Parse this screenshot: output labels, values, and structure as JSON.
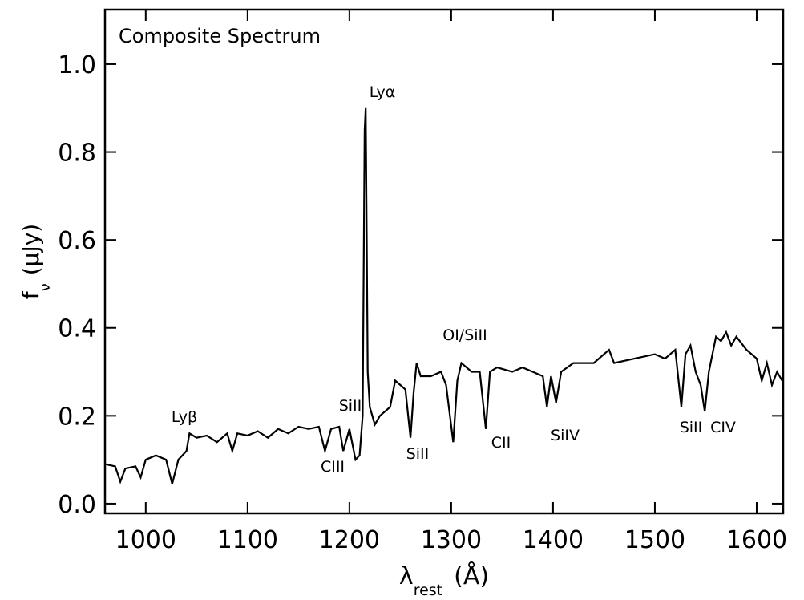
{
  "chart_data": {
    "type": "line",
    "title": "Composite Spectrum",
    "x_label": {
      "symbol": "λ",
      "subscript": "rest",
      "unit": "(Å)"
    },
    "y_label": {
      "symbol": "f",
      "subscript": "ν",
      "unit": "(μJy)"
    },
    "xlim": [
      960,
      1626
    ],
    "ylim": [
      -0.022,
      1.124
    ],
    "xticks": [
      1000,
      1100,
      1200,
      1300,
      1400,
      1500,
      1600
    ],
    "yticks": [
      {
        "value": 0,
        "label": "0.0"
      },
      0.2,
      0.4,
      0.6,
      0.8,
      {
        "value": 1,
        "label": "1.0"
      }
    ],
    "annotations": [
      "Lyα",
      "Lyβ",
      "SiII",
      "CIII",
      "SiII",
      "OI/SiII",
      "CII",
      "SiIV",
      "SiII",
      "CIV"
    ],
    "series": [
      {
        "color": "#000000",
        "x": [
          960,
          970,
          975,
          980,
          990,
          995,
          1000,
          1010,
          1020,
          1026,
          1032,
          1040,
          1043,
          1050,
          1060,
          1070,
          1080,
          1085,
          1090,
          1100,
          1110,
          1120,
          1130,
          1140,
          1150,
          1160,
          1170,
          1176,
          1182,
          1190,
          1194,
          1200,
          1206,
          1210,
          1213,
          1215,
          1216,
          1217,
          1218,
          1220,
          1225,
          1230,
          1240,
          1245,
          1250,
          1255,
          1260,
          1263,
          1266,
          1270,
          1280,
          1290,
          1295,
          1302,
          1306,
          1310,
          1320,
          1328,
          1334,
          1338,
          1345,
          1360,
          1370,
          1380,
          1390,
          1394,
          1398,
          1403,
          1408,
          1420,
          1440,
          1455,
          1460,
          1480,
          1500,
          1510,
          1520,
          1526,
          1530,
          1535,
          1540,
          1545,
          1549,
          1553,
          1560,
          1565,
          1570,
          1575,
          1580,
          1590,
          1600,
          1605,
          1610,
          1615,
          1620,
          1625
        ],
        "values": [
          0.09,
          0.085,
          0.05,
          0.08,
          0.085,
          0.06,
          0.1,
          0.11,
          0.1,
          0.045,
          0.1,
          0.12,
          0.16,
          0.15,
          0.155,
          0.14,
          0.16,
          0.12,
          0.16,
          0.155,
          0.165,
          0.15,
          0.17,
          0.16,
          0.175,
          0.17,
          0.175,
          0.12,
          0.17,
          0.175,
          0.12,
          0.17,
          0.1,
          0.11,
          0.2,
          0.85,
          0.9,
          0.6,
          0.3,
          0.22,
          0.18,
          0.2,
          0.22,
          0.28,
          0.27,
          0.26,
          0.15,
          0.25,
          0.32,
          0.29,
          0.29,
          0.3,
          0.27,
          0.14,
          0.28,
          0.32,
          0.3,
          0.3,
          0.17,
          0.3,
          0.31,
          0.3,
          0.31,
          0.3,
          0.29,
          0.22,
          0.29,
          0.23,
          0.3,
          0.32,
          0.32,
          0.35,
          0.32,
          0.33,
          0.34,
          0.33,
          0.35,
          0.22,
          0.34,
          0.36,
          0.3,
          0.27,
          0.21,
          0.3,
          0.38,
          0.37,
          0.39,
          0.36,
          0.38,
          0.35,
          0.33,
          0.28,
          0.32,
          0.27,
          0.3,
          0.28
        ]
      }
    ]
  }
}
